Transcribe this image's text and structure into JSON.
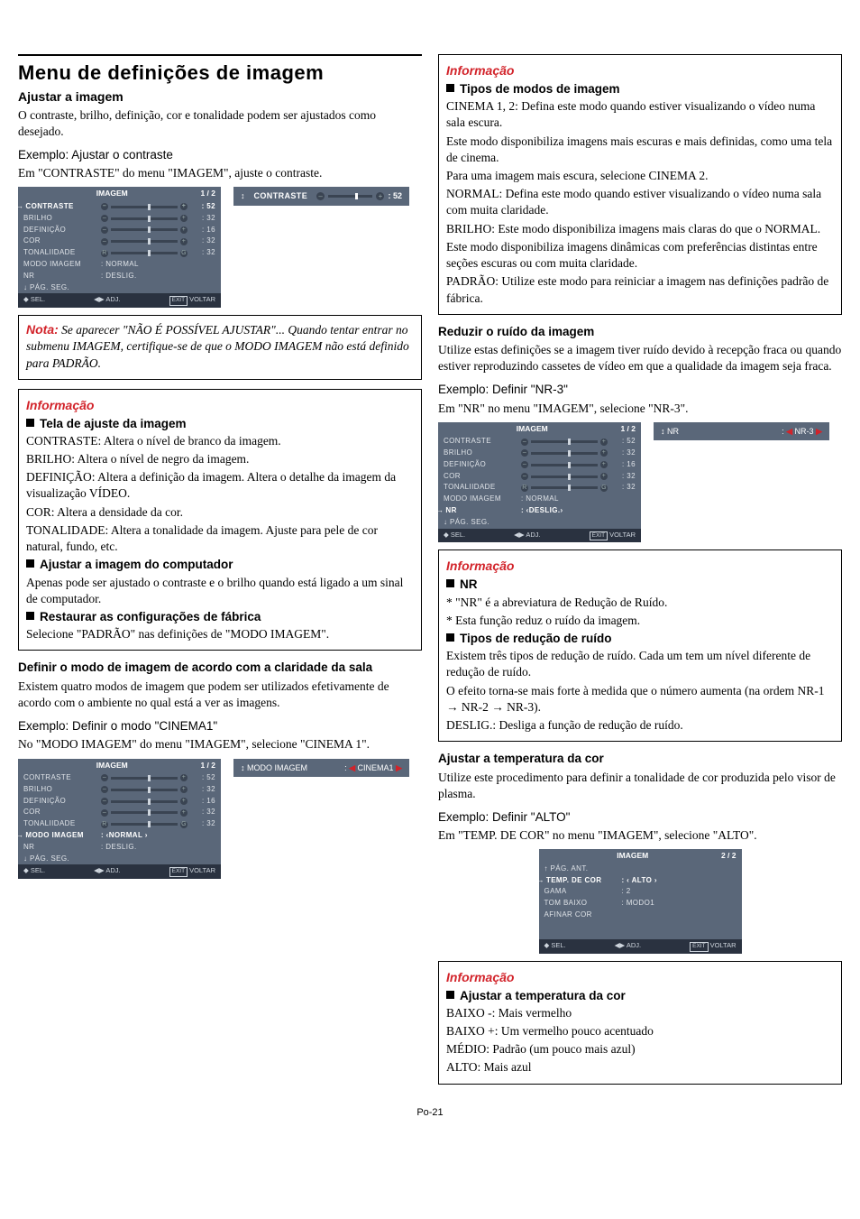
{
  "footer": "Po-21",
  "left": {
    "rule": true,
    "main_title": "Menu de definições de imagem",
    "sub1": "Ajustar a imagem",
    "p1": "O contraste, brilho, definição, cor e tonalidade podem ser ajustados como desejado.",
    "ex1": "Exemplo: Ajustar o contraste",
    "p2": "Em \"CONTRASTE\" do menu \"IMAGEM\", ajuste o contraste.",
    "osd1": {
      "title": "IMAGEM",
      "page": "1 / 2",
      "rows": [
        {
          "label": "CONTRASTE",
          "val": ": 52",
          "sel": true,
          "slider": true
        },
        {
          "label": "BRILHO",
          "val": ": 32",
          "slider": true
        },
        {
          "label": "DEFINIÇÃO",
          "val": ": 16",
          "slider": true
        },
        {
          "label": "COR",
          "val": ": 32",
          "slider": true
        },
        {
          "label": "TONALIIDADE",
          "val": ": 32",
          "slider": true,
          "tone": true
        },
        {
          "label": "MODO IMAGEM",
          "text": ":   NORMAL"
        },
        {
          "label": "NR",
          "text": ":   DESLIG."
        },
        {
          "label": "PÁG. SEG.",
          "pagenav": true
        }
      ],
      "foot": {
        "sel": "SEL.",
        "adj": "ADJ.",
        "exit": "EXIT",
        "voltar": "VOLTAR"
      },
      "strip": {
        "label": "CONTRASTE",
        "val": ": 52"
      }
    },
    "nota": {
      "label": "Nota:",
      "body": " Se aparecer \"NÃO É POSSÍVEL AJUSTAR\"... Quando tentar entrar no submenu IMAGEM, certifique-se de que o MODO IMAGEM não está definido para PADRÃO."
    },
    "info1": {
      "title": "Informação",
      "h1": "Tela de ajuste da imagem",
      "lines": [
        "CONTRASTE: Altera o nível de branco da imagem.",
        "BRILHO: Altera o nível de negro da imagem.",
        "DEFINIÇÃO: Altera a definição da imagem. Altera o detalhe da imagem da visualização VÍDEO.",
        "COR: Altera a densidade da cor.",
        "TONALIDADE: Altera a tonalidade da imagem. Ajuste para pele de cor natural, fundo, etc."
      ],
      "h2": "Ajustar a imagem do computador",
      "p_h2": "Apenas pode ser ajustado o contraste e o brilho quando está ligado a um sinal de computador.",
      "h3": "Restaurar as configurações de fábrica",
      "p_h3": "Selecione \"PADRÃO\" nas definições de \"MODO IMAGEM\"."
    },
    "sub2": "Definir o modo de imagem de acordo com a claridade da sala",
    "p3": "Existem quatro modos de imagem que podem ser utilizados efetivamente de acordo com o ambiente no qual está a ver as imagens.",
    "ex2": "Exemplo: Definir o modo \"CINEMA1\"",
    "p4": "No \"MODO IMAGEM\" do menu \"IMAGEM\", selecione \"CINEMA 1\".",
    "osd2": {
      "title": "IMAGEM",
      "page": "1 / 2",
      "rows": [
        {
          "label": "CONTRASTE",
          "val": ": 52",
          "slider": true
        },
        {
          "label": "BRILHO",
          "val": ": 32",
          "slider": true
        },
        {
          "label": "DEFINIÇÃO",
          "val": ": 16",
          "slider": true
        },
        {
          "label": "COR",
          "val": ": 32",
          "slider": true
        },
        {
          "label": "TONALIIDADE",
          "val": ": 32",
          "slider": true,
          "tone": true
        },
        {
          "label": "MODO IMAGEM",
          "text": ":  ‹NORMAL ›",
          "sel": true
        },
        {
          "label": "NR",
          "text": ":   DESLIG."
        },
        {
          "label": "PÁG. SEG.",
          "pagenav": true
        }
      ],
      "foot": {
        "sel": "SEL.",
        "adj": "ADJ.",
        "exit": "EXIT",
        "voltar": "VOLTAR"
      },
      "strip2": {
        "label": "MODO IMAGEM",
        "val": "CINEMA1"
      }
    }
  },
  "right": {
    "info2": {
      "title": "Informação",
      "h1": "Tipos de modos de imagem",
      "p1a": "CINEMA 1, 2: Defina este modo quando estiver visualizando o vídeo numa sala escura.",
      "p1b": "Este modo disponibiliza imagens mais escuras e mais definidas, como uma tela de cinema.",
      "p1c": "Para uma imagem mais escura, selecione CINEMA 2.",
      "p2a": "NORMAL: Defina este modo quando estiver visualizando o vídeo numa sala com muita claridade.",
      "p3a": "BRILHO: Este modo disponibiliza imagens mais claras do que o NORMAL.",
      "p3b": "Este modo disponibiliza imagens dinâmicas com preferências distintas entre seções escuras ou com muita claridade.",
      "p4a": "PADRÃO: Utilize este modo para reiniciar a imagem nas definições padrão de fábrica."
    },
    "sub3": "Reduzir o ruído da imagem",
    "p5": "Utilize estas definições se a imagem tiver ruído devido à recepção fraca ou quando estiver reproduzindo cassetes de vídeo em que a qualidade da imagem seja fraca.",
    "ex3": "Exemplo: Definir \"NR-3\"",
    "p6": "Em \"NR\" no menu \"IMAGEM\", selecione \"NR-3\".",
    "osd3": {
      "title": "IMAGEM",
      "page": "1 / 2",
      "rows": [
        {
          "label": "CONTRASTE",
          "val": ": 52",
          "slider": true
        },
        {
          "label": "BRILHO",
          "val": ": 32",
          "slider": true
        },
        {
          "label": "DEFINIÇÃO",
          "val": ": 16",
          "slider": true
        },
        {
          "label": "COR",
          "val": ": 32",
          "slider": true
        },
        {
          "label": "TONALIIDADE",
          "val": ": 32",
          "slider": true,
          "tone": true
        },
        {
          "label": "MODO IMAGEM",
          "text": ":   NORMAL"
        },
        {
          "label": "NR",
          "text": ":  ‹DESLIG.›",
          "sel": true
        },
        {
          "label": "PÁG. SEG.",
          "pagenav": true
        }
      ],
      "foot": {
        "sel": "SEL.",
        "adj": "ADJ.",
        "exit": "EXIT",
        "voltar": "VOLTAR"
      },
      "strip2": {
        "label": "NR",
        "val": "NR-3"
      }
    },
    "info3": {
      "title": "Informação",
      "h1": "NR",
      "b1": "* \"NR\" é a abreviatura de Redução de Ruído.",
      "b2": "* Esta função reduz o ruído da imagem.",
      "h2": "Tipos de redução de ruído",
      "p1": "Existem três tipos de redução de ruído. Cada um tem um nível diferente de redução de ruído.",
      "p2": "O efeito torna-se mais forte à medida que o número aumenta (na ordem NR-1 → NR-2 → NR-3).",
      "p3": "DESLIG.: Desliga a função de redução de ruído."
    },
    "sub4": "Ajustar a temperatura da cor",
    "p7": "Utilize este procedimento para definir a tonalidade de cor produzida pelo visor de plasma.",
    "ex4": "Exemplo: Definir \"ALTO\"",
    "p8": "Em \"TEMP. DE COR\" no menu \"IMAGEM\", selecione \"ALTO\".",
    "osd4": {
      "title": "IMAGEM",
      "page": "2 / 2",
      "rows": [
        {
          "label": "PÁG. ANT.",
          "pagenav_up": true
        },
        {
          "label": "TEMP. DE COR",
          "text": ":  ‹ ALTO   ›",
          "sel": true
        },
        {
          "label": "GAMA",
          "text": ":   2"
        },
        {
          "label": "TOM BAIXO",
          "text": ":   MODO1"
        },
        {
          "label": "AFINAR COR",
          "text": ""
        }
      ],
      "foot": {
        "sel": "SEL.",
        "adj": "ADJ.",
        "exit": "EXIT",
        "voltar": "VOLTAR"
      }
    },
    "info4": {
      "title": "Informação",
      "h1": "Ajustar a temperatura da cor",
      "l1": "BAIXO -: Mais vermelho",
      "l2": "BAIXO +: Um vermelho pouco acentuado",
      "l3": "MÉDIO: Padrão (um pouco mais azul)",
      "l4": "ALTO: Mais azul"
    }
  }
}
